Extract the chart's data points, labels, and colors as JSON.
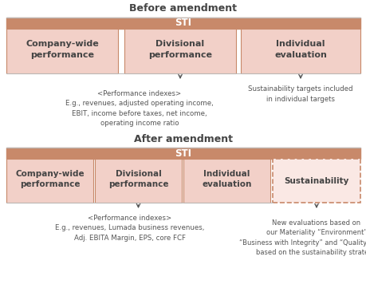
{
  "title_before": "Before amendment",
  "title_after": "After amendment",
  "sti_color": "#C8896A",
  "box_fill_light": "#F2D0C8",
  "sustainability_fill": "#FAE8E4",
  "text_color_dark": "#444444",
  "text_color_medium": "#555555",
  "line_color": "#BBBBBB",
  "before_note_left": "<Performance indexes>\nE.g., revenues, adjusted operating income,\nEBIT, income before taxes, net income,\noperating income ratio",
  "before_note_right": "Sustainability targets included\nin individual targets",
  "after_note_left": "<Performance indexes>\nE.g., revenues, Lumada business revenues,\nAdj. EBITA Margin, EPS, core FCF",
  "after_note_right": "New evaluations based on\nour Materiality “Environment”\n“Business with Integrity” and “Quality of Life”\nbased on the sustainability strategy",
  "bg_color": "#FFFFFF"
}
